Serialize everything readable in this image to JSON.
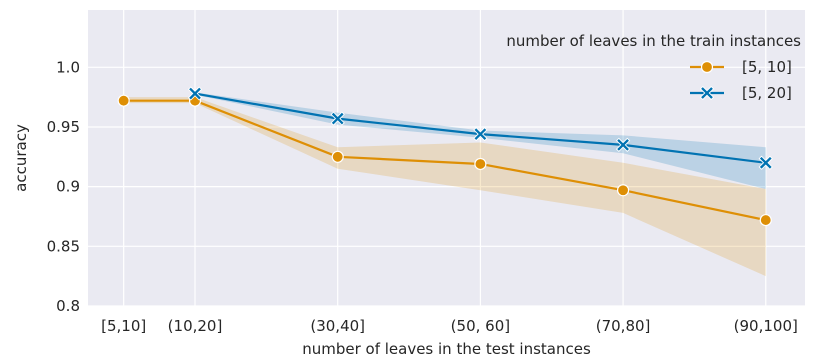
{
  "chart_data": {
    "type": "line",
    "xlabel": "number of leaves in the test instances",
    "ylabel": "accuracy",
    "categories": [
      "[5,10]",
      "(10,20]",
      "(30,40]",
      "(50, 60]",
      "(70,80]",
      "(90,100]"
    ],
    "category_x": [
      1,
      2,
      4,
      6,
      8,
      10
    ],
    "xlim": [
      0.5,
      10.55
    ],
    "ylim": [
      0.8,
      1.048
    ],
    "yticks": [
      0.8,
      0.85,
      0.9,
      0.95,
      1.0
    ],
    "ytick_labels": [
      "0.8",
      "0.85",
      "0.9",
      "0.95",
      "1.0"
    ],
    "grid": true,
    "background": "#EAEAF2",
    "legend": {
      "title": "number of leaves in the train instances",
      "placement": "top-right"
    },
    "series": [
      {
        "name": "[5, 10]",
        "color": "#DE8F05",
        "marker": "circle",
        "x": [
          1,
          2,
          4,
          6,
          8,
          10
        ],
        "values": [
          0.972,
          0.972,
          0.925,
          0.919,
          0.897,
          0.872
        ],
        "ci_low": [
          0.97,
          0.97,
          0.915,
          0.897,
          0.878,
          0.825
        ],
        "ci_high": [
          0.975,
          0.975,
          0.933,
          0.937,
          0.92,
          0.898
        ]
      },
      {
        "name": "[5, 20]",
        "color": "#0173B2",
        "marker": "x",
        "x": [
          2,
          4,
          6,
          8,
          10
        ],
        "values": [
          0.978,
          0.957,
          0.944,
          0.935,
          0.92
        ],
        "ci_low": [
          0.977,
          0.952,
          0.941,
          0.928,
          0.898
        ],
        "ci_high": [
          0.979,
          0.962,
          0.947,
          0.943,
          0.933
        ]
      }
    ]
  }
}
